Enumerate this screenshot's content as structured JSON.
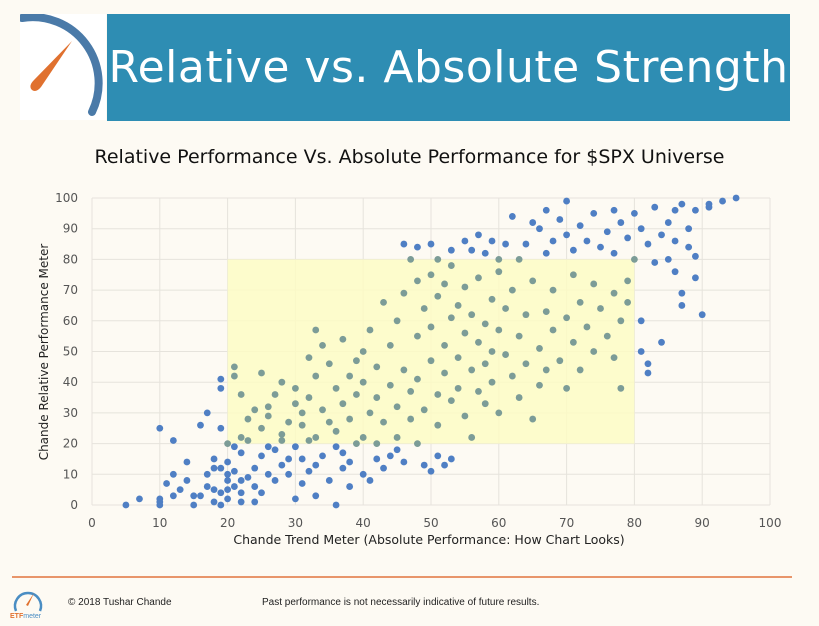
{
  "header": {
    "title": "Relative vs. Absolute Strength",
    "logo_icon": "speedometer-gauge-icon"
  },
  "footer": {
    "copyright": "© 2018 Tushar Chande",
    "disclaimer": "Past performance is not necessarily indicative of future results.",
    "logo_text_a": "ETF",
    "logo_text_b": "meter"
  },
  "colors": {
    "banner": "#2e8db3",
    "point_outside": "#4f7fc4",
    "point_inside": "#7c9c97",
    "highlight_box": "#fdfbc4",
    "footer_rule": "#e8956a",
    "gauge_needle": "#e0712f",
    "gauge_arc": "#4a7aa8"
  },
  "chart_data": {
    "type": "scatter",
    "title": "Relative Performance Vs. Absolute Performance for $SPX Universe",
    "xlabel": "Chande Trend Meter (Absolute Performance: How Chart Looks)",
    "ylabel": "Chande Relative Performance  Meter",
    "xlim": [
      0,
      100
    ],
    "ylim": [
      0,
      100
    ],
    "xticks": [
      0,
      10,
      20,
      30,
      40,
      50,
      60,
      70,
      80,
      90,
      100
    ],
    "yticks": [
      0,
      10,
      20,
      30,
      40,
      50,
      60,
      70,
      80,
      90,
      100
    ],
    "grid": true,
    "highlight_region": {
      "x": [
        20,
        80
      ],
      "y": [
        20,
        80
      ]
    },
    "points": [
      [
        5,
        0
      ],
      [
        7,
        2
      ],
      [
        10,
        0
      ],
      [
        10,
        1
      ],
      [
        10,
        2
      ],
      [
        10,
        25
      ],
      [
        11,
        7
      ],
      [
        12,
        3
      ],
      [
        12,
        10
      ],
      [
        12,
        21
      ],
      [
        13,
        5
      ],
      [
        14,
        8
      ],
      [
        14,
        14
      ],
      [
        15,
        0
      ],
      [
        15,
        3
      ],
      [
        16,
        3
      ],
      [
        16,
        26
      ],
      [
        17,
        6
      ],
      [
        17,
        10
      ],
      [
        17,
        30
      ],
      [
        18,
        1
      ],
      [
        18,
        5
      ],
      [
        18,
        12
      ],
      [
        18,
        15
      ],
      [
        19,
        0
      ],
      [
        19,
        4
      ],
      [
        19,
        12
      ],
      [
        19,
        25
      ],
      [
        19,
        38
      ],
      [
        19,
        41
      ],
      [
        20,
        2
      ],
      [
        20,
        5
      ],
      [
        20,
        8
      ],
      [
        20,
        10
      ],
      [
        20,
        14
      ],
      [
        20,
        20
      ],
      [
        21,
        6
      ],
      [
        21,
        11
      ],
      [
        21,
        19
      ],
      [
        22,
        1
      ],
      [
        22,
        4
      ],
      [
        22,
        8
      ],
      [
        22,
        17
      ],
      [
        23,
        9
      ],
      [
        23,
        21
      ],
      [
        24,
        1
      ],
      [
        24,
        6
      ],
      [
        24,
        12
      ],
      [
        25,
        4
      ],
      [
        25,
        16
      ],
      [
        26,
        10
      ],
      [
        26,
        19
      ],
      [
        27,
        8
      ],
      [
        27,
        18
      ],
      [
        28,
        13
      ],
      [
        28,
        21
      ],
      [
        29,
        10
      ],
      [
        29,
        15
      ],
      [
        30,
        2
      ],
      [
        30,
        19
      ],
      [
        31,
        7
      ],
      [
        31,
        15
      ],
      [
        32,
        11
      ],
      [
        32,
        21
      ],
      [
        33,
        3
      ],
      [
        33,
        13
      ],
      [
        34,
        16
      ],
      [
        35,
        8
      ],
      [
        36,
        0
      ],
      [
        36,
        19
      ],
      [
        37,
        12
      ],
      [
        37,
        17
      ],
      [
        38,
        6
      ],
      [
        38,
        14
      ],
      [
        39,
        20
      ],
      [
        40,
        10
      ],
      [
        41,
        8
      ],
      [
        42,
        15
      ],
      [
        42,
        20
      ],
      [
        43,
        12
      ],
      [
        44,
        16
      ],
      [
        45,
        18
      ],
      [
        46,
        14
      ],
      [
        48,
        20
      ],
      [
        49,
        13
      ],
      [
        50,
        11
      ],
      [
        51,
        16
      ],
      [
        52,
        13
      ],
      [
        53,
        15
      ],
      [
        21,
        42
      ],
      [
        21,
        45
      ],
      [
        22,
        22
      ],
      [
        22,
        36
      ],
      [
        23,
        28
      ],
      [
        24,
        31
      ],
      [
        25,
        43
      ],
      [
        25,
        25
      ],
      [
        26,
        32
      ],
      [
        26,
        29
      ],
      [
        27,
        36
      ],
      [
        28,
        40
      ],
      [
        28,
        23
      ],
      [
        29,
        27
      ],
      [
        30,
        38
      ],
      [
        30,
        33
      ],
      [
        31,
        30
      ],
      [
        31,
        26
      ],
      [
        32,
        35
      ],
      [
        32,
        48
      ],
      [
        33,
        22
      ],
      [
        33,
        57
      ],
      [
        33,
        42
      ],
      [
        34,
        52
      ],
      [
        34,
        31
      ],
      [
        35,
        46
      ],
      [
        35,
        27
      ],
      [
        36,
        38
      ],
      [
        36,
        24
      ],
      [
        37,
        54
      ],
      [
        37,
        33
      ],
      [
        38,
        42
      ],
      [
        38,
        28
      ],
      [
        39,
        47
      ],
      [
        39,
        36
      ],
      [
        40,
        22
      ],
      [
        40,
        50
      ],
      [
        40,
        40
      ],
      [
        41,
        30
      ],
      [
        41,
        57
      ],
      [
        42,
        45
      ],
      [
        42,
        35
      ],
      [
        43,
        27
      ],
      [
        43,
        66
      ],
      [
        44,
        52
      ],
      [
        44,
        39
      ],
      [
        45,
        32
      ],
      [
        45,
        60
      ],
      [
        45,
        22
      ],
      [
        46,
        44
      ],
      [
        46,
        69
      ],
      [
        47,
        37
      ],
      [
        47,
        28
      ],
      [
        48,
        55
      ],
      [
        48,
        73
      ],
      [
        48,
        41
      ],
      [
        49,
        64
      ],
      [
        49,
        31
      ],
      [
        50,
        47
      ],
      [
        50,
        58
      ],
      [
        50,
        75
      ],
      [
        51,
        36
      ],
      [
        51,
        68
      ],
      [
        51,
        26
      ],
      [
        52,
        52
      ],
      [
        52,
        43
      ],
      [
        52,
        72
      ],
      [
        53,
        61
      ],
      [
        53,
        34
      ],
      [
        53,
        78
      ],
      [
        54,
        48
      ],
      [
        54,
        38
      ],
      [
        54,
        65
      ],
      [
        55,
        56
      ],
      [
        55,
        29
      ],
      [
        55,
        71
      ],
      [
        56,
        44
      ],
      [
        56,
        62
      ],
      [
        56,
        22
      ],
      [
        57,
        53
      ],
      [
        57,
        37
      ],
      [
        57,
        74
      ],
      [
        58,
        59
      ],
      [
        58,
        46
      ],
      [
        58,
        33
      ],
      [
        59,
        67
      ],
      [
        59,
        50
      ],
      [
        59,
        40
      ],
      [
        60,
        57
      ],
      [
        60,
        76
      ],
      [
        60,
        30
      ],
      [
        61,
        64
      ],
      [
        61,
        49
      ],
      [
        62,
        42
      ],
      [
        62,
        70
      ],
      [
        63,
        55
      ],
      [
        63,
        35
      ],
      [
        64,
        62
      ],
      [
        64,
        46
      ],
      [
        65,
        73
      ],
      [
        65,
        28
      ],
      [
        66,
        51
      ],
      [
        66,
        39
      ],
      [
        67,
        63
      ],
      [
        67,
        44
      ],
      [
        68,
        57
      ],
      [
        68,
        70
      ],
      [
        69,
        47
      ],
      [
        70,
        61
      ],
      [
        70,
        38
      ],
      [
        71,
        53
      ],
      [
        71,
        75
      ],
      [
        72,
        66
      ],
      [
        72,
        44
      ],
      [
        73,
        58
      ],
      [
        74,
        50
      ],
      [
        74,
        72
      ],
      [
        75,
        64
      ],
      [
        76,
        55
      ],
      [
        77,
        48
      ],
      [
        77,
        69
      ],
      [
        78,
        60
      ],
      [
        78,
        38
      ],
      [
        79,
        73
      ],
      [
        79,
        66
      ],
      [
        46,
        85
      ],
      [
        47,
        80
      ],
      [
        48,
        84
      ],
      [
        50,
        85
      ],
      [
        51,
        80
      ],
      [
        53,
        83
      ],
      [
        55,
        86
      ],
      [
        56,
        83
      ],
      [
        57,
        88
      ],
      [
        58,
        82
      ],
      [
        59,
        86
      ],
      [
        60,
        80
      ],
      [
        61,
        85
      ],
      [
        62,
        94
      ],
      [
        63,
        80
      ],
      [
        64,
        85
      ],
      [
        65,
        92
      ],
      [
        66,
        90
      ],
      [
        67,
        82
      ],
      [
        67,
        96
      ],
      [
        68,
        86
      ],
      [
        69,
        93
      ],
      [
        70,
        88
      ],
      [
        70,
        99
      ],
      [
        71,
        83
      ],
      [
        72,
        91
      ],
      [
        73,
        86
      ],
      [
        74,
        95
      ],
      [
        75,
        84
      ],
      [
        76,
        89
      ],
      [
        77,
        96
      ],
      [
        77,
        82
      ],
      [
        78,
        92
      ],
      [
        79,
        87
      ],
      [
        80,
        95
      ],
      [
        80,
        80
      ],
      [
        81,
        90
      ],
      [
        81,
        60
      ],
      [
        81,
        50
      ],
      [
        82,
        85
      ],
      [
        82,
        46
      ],
      [
        82,
        43
      ],
      [
        83,
        97
      ],
      [
        83,
        79
      ],
      [
        84,
        88
      ],
      [
        84,
        53
      ],
      [
        85,
        92
      ],
      [
        85,
        80
      ],
      [
        86,
        96
      ],
      [
        86,
        76
      ],
      [
        86,
        86
      ],
      [
        87,
        98
      ],
      [
        87,
        69
      ],
      [
        87,
        65
      ],
      [
        88,
        90
      ],
      [
        88,
        84
      ],
      [
        89,
        96
      ],
      [
        89,
        81
      ],
      [
        89,
        74
      ],
      [
        90,
        62
      ],
      [
        91,
        98
      ],
      [
        91,
        97
      ],
      [
        93,
        99
      ],
      [
        95,
        100
      ]
    ]
  }
}
